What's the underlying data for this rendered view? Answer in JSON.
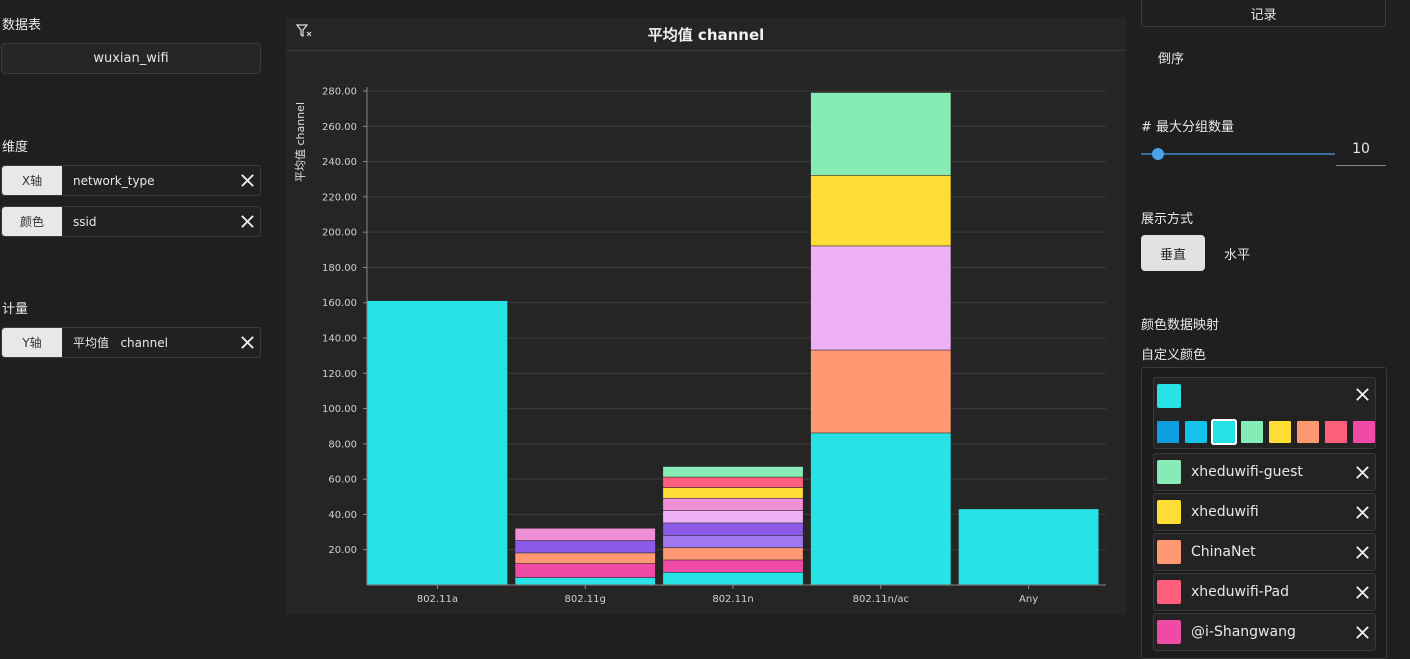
{
  "left": {
    "dataset_label": "数据表",
    "dataset_value": "wuxian_wifi",
    "dimension_label": "维度",
    "dimensions": [
      {
        "tag": "X轴",
        "field": "network_type"
      },
      {
        "tag": "颜色",
        "field": "ssid"
      }
    ],
    "measure_label": "计量",
    "measures": [
      {
        "tag": "Y轴",
        "field": "平均值   channel"
      }
    ]
  },
  "chart": {
    "title": "平均值 channel"
  },
  "chart_data": {
    "type": "bar",
    "stacked": true,
    "ylabel": "平均值 channel",
    "xlabel": "",
    "ylim": [
      0,
      280
    ],
    "yticks": [
      20,
      40,
      60,
      80,
      100,
      120,
      140,
      160,
      180,
      200,
      220,
      240,
      260,
      280
    ],
    "ytick_labels": [
      "20.00",
      "40.00",
      "60.00",
      "80.00",
      "100.00",
      "120.00",
      "140.00",
      "160.00",
      "180.00",
      "200.00",
      "220.00",
      "240.00",
      "260.00",
      "280.00"
    ],
    "categories": [
      "802.11a",
      "802.11g",
      "802.11n",
      "802.11n/ac",
      "Any"
    ],
    "stacks": [
      {
        "category": "802.11a",
        "segments": [
          {
            "color": "#28e3e5",
            "value": 161
          }
        ]
      },
      {
        "category": "802.11g",
        "segments": [
          {
            "color": "#28e3e5",
            "value": 4
          },
          {
            "color": "#ef4aa6",
            "value": 8
          },
          {
            "color": "#ff9873",
            "value": 6
          },
          {
            "color": "#8b5ae6",
            "value": 7
          },
          {
            "color": "#f08fd8",
            "value": 7
          }
        ]
      },
      {
        "category": "802.11n",
        "segments": [
          {
            "color": "#28e3e5",
            "value": 7
          },
          {
            "color": "#ef4aa6",
            "value": 7
          },
          {
            "color": "#ff9873",
            "value": 7
          },
          {
            "color": "#a077ee",
            "value": 7
          },
          {
            "color": "#8b5ae6",
            "value": 7
          },
          {
            "color": "#eeb1f5",
            "value": 7
          },
          {
            "color": "#f08fd8",
            "value": 7
          },
          {
            "color": "#ffdd35",
            "value": 6
          },
          {
            "color": "#fd5f7d",
            "value": 6
          },
          {
            "color": "#86ebb5",
            "value": 6
          }
        ]
      },
      {
        "category": "802.11n/ac",
        "segments": [
          {
            "color": "#28e3e5",
            "value": 86
          },
          {
            "color": "#ff9873",
            "value": 47
          },
          {
            "color": "#eeb1f5",
            "value": 59
          },
          {
            "color": "#ffdd35",
            "value": 40
          },
          {
            "color": "#86ebb5",
            "value": 47
          }
        ]
      },
      {
        "category": "Any",
        "segments": [
          {
            "color": "#28e3e5",
            "value": 43
          }
        ]
      }
    ]
  },
  "right": {
    "record_label": "记录",
    "reverse_label": "倒序",
    "max_groups_label": "# 最大分组数量",
    "max_groups_value": "10",
    "max_groups_fraction": 0.09,
    "display_label": "展示方式",
    "vertical_label": "垂直",
    "horizontal_label": "水平",
    "color_map_label": "颜色数据映射",
    "custom_color_label": "自定义颜色",
    "palette": [
      "#0c9ee0",
      "#14c3eb",
      "#28e3e5",
      "#86ebb5",
      "#ffdd35",
      "#ff9873",
      "#fd5f7d",
      "#ef4aa6"
    ],
    "color_entries": [
      {
        "name": "",
        "color": "#28e3e5"
      },
      {
        "name": "xheduwifi-guest",
        "color": "#86ebb5"
      },
      {
        "name": "xheduwifi",
        "color": "#ffdd35"
      },
      {
        "name": "ChinaNet",
        "color": "#ff9873"
      },
      {
        "name": "xheduwifi-Pad",
        "color": "#fd5f7d"
      },
      {
        "name": "@i-Shangwang",
        "color": "#ef4aa6"
      }
    ]
  }
}
